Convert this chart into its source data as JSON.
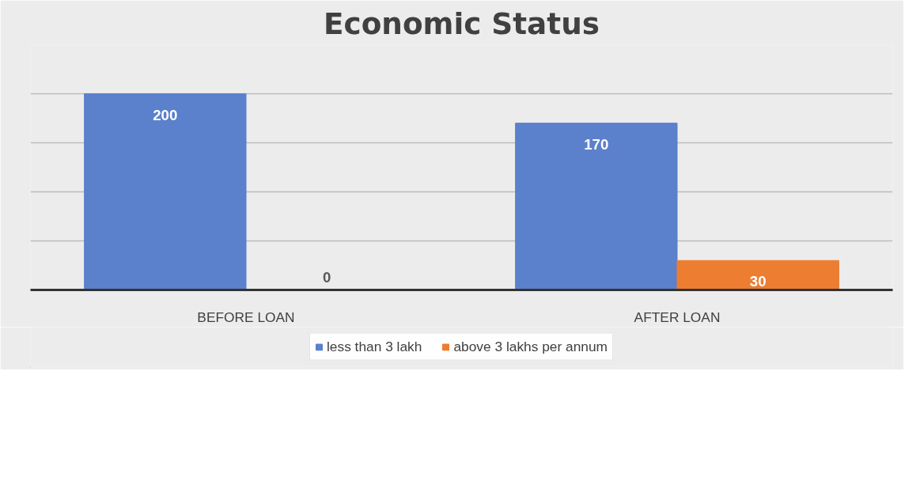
{
  "chart_data": {
    "type": "bar",
    "title": "Economic Status",
    "categories": [
      "BEFORE LOAN",
      "AFTER LOAN"
    ],
    "series": [
      {
        "name": "less than 3 lakh",
        "color": "#5b80cc",
        "values": [
          200,
          170
        ]
      },
      {
        "name": "above 3 lakhs per annum",
        "color": "#ed7d31",
        "values": [
          0,
          30
        ]
      }
    ],
    "ylim": [
      0,
      250
    ],
    "yticks": [
      0,
      50,
      100,
      150,
      200,
      250
    ],
    "grid": "y",
    "tick_labels": "x",
    "data_labels": true,
    "legend": "bottom"
  }
}
